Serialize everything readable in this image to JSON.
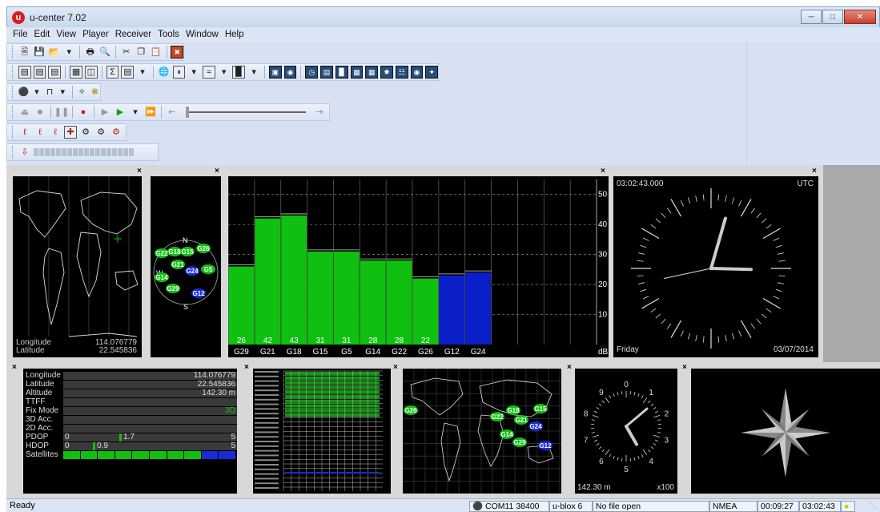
{
  "window": {
    "title": "u-center 7.02",
    "logo_letter": "u"
  },
  "menu": [
    "File",
    "Edit",
    "View",
    "Player",
    "Receiver",
    "Tools",
    "Window",
    "Help"
  ],
  "sky": {
    "satellites": [
      "G22",
      "G18",
      "G15",
      "G26",
      "G21",
      "G24",
      "G5",
      "G14",
      "G29",
      "G12"
    ],
    "north": "N",
    "south": "S",
    "west": "W"
  },
  "map": {
    "lon_label": "Longitude",
    "lon_val": "114.076779",
    "lat_label": "Latitude",
    "lat_val": "22.545836"
  },
  "chart_data": {
    "type": "bar",
    "categories": [
      "G29",
      "G21",
      "G18",
      "G15",
      "G5",
      "G14",
      "G22",
      "G26",
      "G12",
      "G24"
    ],
    "values": [
      26,
      42,
      43,
      31,
      31,
      28,
      28,
      22,
      23,
      24
    ],
    "value_labels": [
      "26",
      "42",
      "43",
      "31",
      "31",
      "28",
      "28",
      "22",
      "",
      ""
    ],
    "used_in_fix": [
      true,
      true,
      true,
      true,
      true,
      true,
      true,
      true,
      false,
      false
    ],
    "ylim": [
      0,
      55
    ],
    "yticks": [
      "10",
      "20",
      "30",
      "40",
      "50"
    ],
    "unit": "dB",
    "colors": {
      "used": "#10c010",
      "not_used": "#0a1fc8",
      "bg": "#000000"
    }
  },
  "clock": {
    "time": "03:02:43.000",
    "zone": "UTC",
    "day": "Friday",
    "date": "03/07/2014"
  },
  "info": {
    "rows": [
      {
        "label": "Longitude",
        "value": "114.076779"
      },
      {
        "label": "Latitude",
        "value": "22.545836"
      },
      {
        "label": "Altitude",
        "value": "142.30 m"
      },
      {
        "label": "TTFF",
        "value": ""
      },
      {
        "label": "Fix Mode",
        "value": "3D"
      },
      {
        "label": "3D Acc.",
        "value": ""
      },
      {
        "label": "2D Acc.",
        "value": ""
      }
    ],
    "pdop": {
      "label": "PDOP",
      "min": "0",
      "value": "1.7",
      "max": "5"
    },
    "hdop": {
      "label": "HDOP",
      "min": "0",
      "value": "0.9",
      "max": "5"
    },
    "satellites_label": "Satellites"
  },
  "world_map": {
    "satellites": [
      "G26",
      "G18",
      "G15",
      "G22",
      "G21",
      "G24",
      "G14",
      "G29",
      "G12"
    ]
  },
  "altimeter": {
    "numbers": [
      "0",
      "1",
      "2",
      "3",
      "4",
      "5",
      "6",
      "7",
      "8",
      "9"
    ],
    "altitude": "142.30 m",
    "scale": "x100"
  },
  "status": {
    "ready": "Ready",
    "port": "COM11 38400",
    "receiver": "u-blox 6",
    "file": "No file open",
    "protocol": "NMEA",
    "elapsed": "00:09:27",
    "time": "03:02:43"
  },
  "close_glyph": "×"
}
